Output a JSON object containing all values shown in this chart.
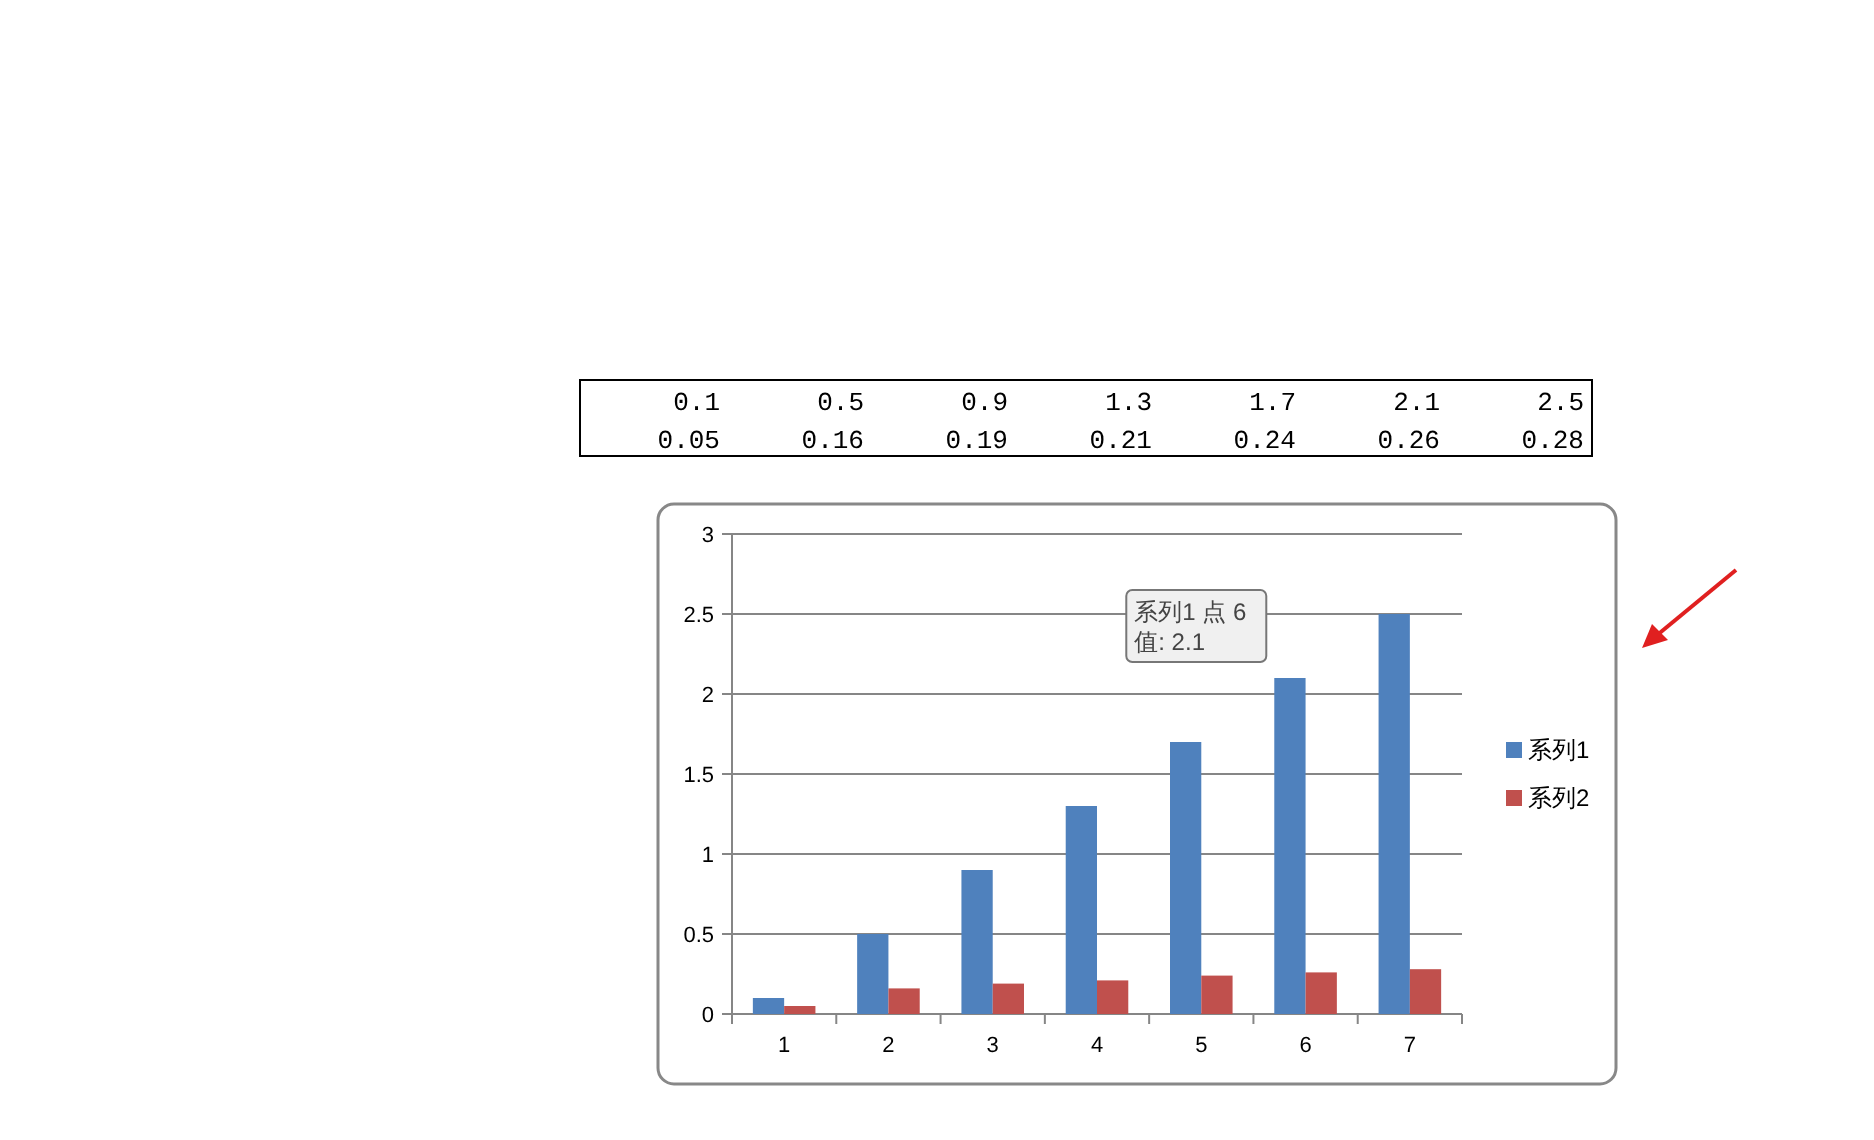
{
  "chart_data": {
    "type": "bar",
    "categories": [
      "1",
      "2",
      "3",
      "4",
      "5",
      "6",
      "7"
    ],
    "series": [
      {
        "name": "系列1",
        "color": "#4f81bd",
        "values": [
          0.1,
          0.5,
          0.9,
          1.3,
          1.7,
          2.1,
          2.5
        ]
      },
      {
        "name": "系列2",
        "color": "#c0504d",
        "values": [
          0.05,
          0.16,
          0.19,
          0.21,
          0.24,
          0.26,
          0.28
        ]
      }
    ],
    "ylim": [
      0,
      3
    ],
    "yticks": [
      0,
      0.5,
      1,
      1.5,
      2,
      2.5,
      3
    ],
    "grid": "y",
    "legend": "right",
    "annotations": [
      "0.1",
      "0.5",
      "0.9",
      "1.3",
      "1.7",
      "2.1",
      "2.5",
      "0.05",
      "0.16",
      "0.19",
      "0.21",
      "0.24",
      "0.26",
      "0.28",
      {
        "text": "系列1 点 6\n值: 2.1",
        "x": "6",
        "y": 2.1
      }
    ]
  }
}
